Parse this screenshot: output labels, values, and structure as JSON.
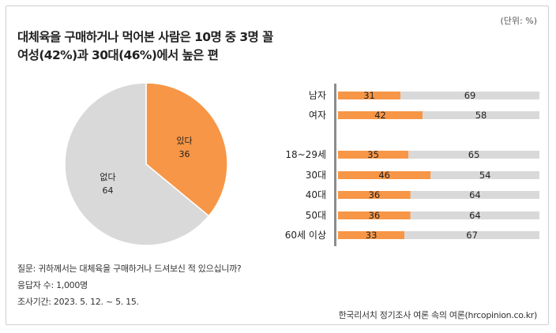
{
  "unit_label": "(단위: %)",
  "title": {
    "line1": "대체육을 구매하거나 먹어본 사람은 10명 중 3명 꼴",
    "line2": "여성(42%)과 30대(46%)에서 높은 편"
  },
  "footer": {
    "question": "질문: 귀하께서는 대체육을 구매하거나 드셔보신 적 있으십니까?",
    "respondents": "응답자 수: 1,000명",
    "period": "조사기간: 2023. 5. 12. ~ 5. 15."
  },
  "source": "한국리서치 정기조사 여론 속의 여론(hrcopinion.co.kr)",
  "colors": {
    "yes": "#f79646",
    "no": "#d9d9d9",
    "axis": "#8c8c8c"
  },
  "chart_data": [
    {
      "type": "pie",
      "title": "",
      "categories": [
        "있다",
        "없다"
      ],
      "values": [
        36,
        64
      ],
      "start_angle_deg": 0,
      "direction": "clockwise"
    },
    {
      "type": "bar",
      "orientation": "horizontal",
      "stacked": true,
      "categories": [
        "남자",
        "여자",
        "18~29세",
        "30대",
        "40대",
        "50대",
        "60세 이상"
      ],
      "groups": [
        [
          "남자",
          "여자"
        ],
        [
          "18~29세",
          "30대",
          "40대",
          "50대",
          "60세 이상"
        ]
      ],
      "series": [
        {
          "name": "있다",
          "values": [
            31,
            42,
            35,
            46,
            36,
            36,
            33
          ]
        },
        {
          "name": "없다",
          "values": [
            69,
            58,
            65,
            54,
            64,
            64,
            67
          ]
        }
      ],
      "xlim": [
        0,
        100
      ],
      "grid": false,
      "legend": "none"
    }
  ]
}
